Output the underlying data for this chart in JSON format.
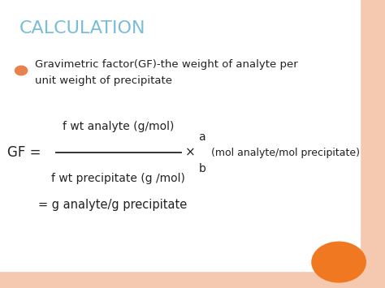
{
  "title": "CALCULATION",
  "title_color": "#7abdd6",
  "title_fontsize": 16,
  "bullet_color": "#e8824a",
  "bullet_text1": "Gravimetric factor(GF)-the weight of analyte per",
  "bullet_text2": "unit weight of precipitate",
  "bg_color": "#ffffff",
  "border_color": "#f5c8b0",
  "formula_numerator": "f wt analyte (g/mol)",
  "formula_denominator": "f wt precipitate (g /mol)",
  "formula_prefix": "GF = ",
  "formula_cross_text": "×",
  "formula_suffix": "(mol analyte/mol precipitate)",
  "formula_result": "= g analyte/g precipitate",
  "orange_circle_color": "#f07820",
  "text_color": "#222222"
}
